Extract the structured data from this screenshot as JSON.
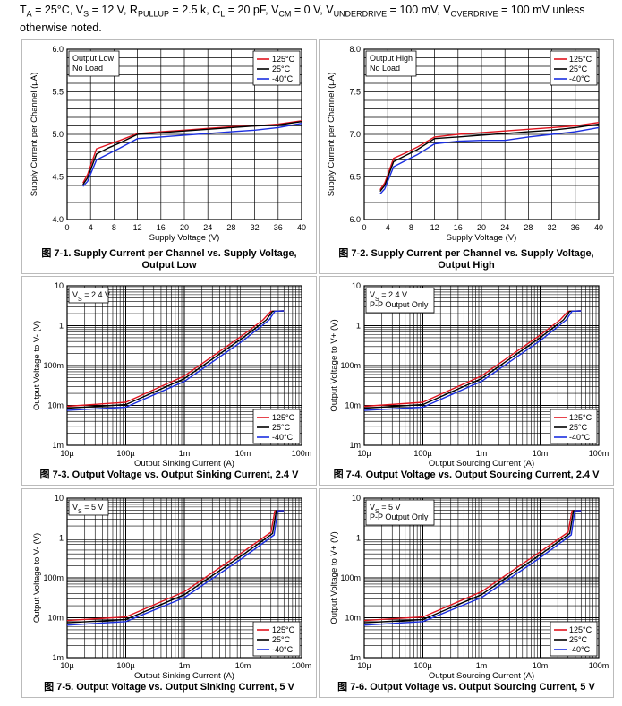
{
  "header": {
    "text": "TA = 25°C, VS = 12 V, RPULLUP = 2.5 k, CL = 20 pF, VCM = 0 V, VUNDERDRIVE = 100 mV, VOVERDRIVE = 100 mV unless otherwise noted.",
    "parts": [
      {
        "t": "T"
      },
      {
        "t": "A",
        "sub": true
      },
      {
        "t": " = 25°C, V"
      },
      {
        "t": "S",
        "sub": true
      },
      {
        "t": " = 12 V, R"
      },
      {
        "t": "PULLUP",
        "sub": true
      },
      {
        "t": " = 2.5 k, C"
      },
      {
        "t": "L",
        "sub": true
      },
      {
        "t": " = 20 pF, V"
      },
      {
        "t": "CM",
        "sub": true
      },
      {
        "t": " = 0 V, V"
      },
      {
        "t": "UNDERDRIVE",
        "sub": true
      },
      {
        "t": " = 100 mV, V"
      },
      {
        "t": "OVERDRIVE",
        "sub": true
      },
      {
        "t": " = 100 mV unless otherwise noted."
      }
    ]
  },
  "legend": {
    "labels": [
      "125°C",
      "25°C",
      "-40°C"
    ],
    "colors": [
      "#e0141e",
      "#000000",
      "#1a2ee0"
    ]
  },
  "chart_data": [
    {
      "id": "fig-7-1",
      "type": "line",
      "scale": "linear",
      "caption": "图 7-1. Supply Current per Channel vs. Supply Voltage, Output Low",
      "annotation": [
        "Output Low",
        "No Load"
      ],
      "xlabel": "Supply Voltage (V)",
      "ylabel": "Supply Current per Channel (µA)",
      "xlim": [
        0,
        40
      ],
      "ylim": [
        4.0,
        6.0
      ],
      "xticks": [
        0,
        4,
        8,
        12,
        16,
        20,
        24,
        28,
        32,
        36,
        40
      ],
      "yticks": [
        4.0,
        4.5,
        5.0,
        5.5,
        6.0
      ],
      "ytick_labels": [
        "4.0",
        "4.5",
        "5.0",
        "5.5",
        "6.0"
      ],
      "series": [
        {
          "name": "125°C",
          "x": [
            2.7,
            3.5,
            5,
            7,
            9,
            12,
            16,
            20,
            24,
            28,
            32,
            36,
            40
          ],
          "y": [
            4.43,
            4.53,
            4.83,
            4.88,
            4.93,
            5.01,
            5.03,
            5.05,
            5.07,
            5.09,
            5.1,
            5.12,
            5.16
          ]
        },
        {
          "name": "25°C",
          "x": [
            2.7,
            3.5,
            5,
            7,
            9,
            12,
            16,
            20,
            24,
            28,
            32,
            36,
            40
          ],
          "y": [
            4.41,
            4.49,
            4.77,
            4.84,
            4.9,
            5.0,
            5.02,
            5.04,
            5.06,
            5.08,
            5.1,
            5.11,
            5.15
          ]
        },
        {
          "name": "-40°C",
          "x": [
            2.7,
            3.5,
            5,
            7,
            9,
            12,
            16,
            20,
            24,
            28,
            32,
            36,
            40
          ],
          "y": [
            4.39,
            4.45,
            4.7,
            4.77,
            4.84,
            4.95,
            4.97,
            4.99,
            5.01,
            5.03,
            5.05,
            5.08,
            5.13
          ]
        }
      ]
    },
    {
      "id": "fig-7-2",
      "type": "line",
      "scale": "linear",
      "caption": "图 7-2. Supply Current per Channel vs. Supply Voltage, Output High",
      "annotation": [
        "Output High",
        "No Load"
      ],
      "xlabel": "Supply Voltage (V)",
      "ylabel": "Supply Current per Channel (µA)",
      "xlim": [
        0,
        40
      ],
      "ylim": [
        6.0,
        8.0
      ],
      "xticks": [
        0,
        4,
        8,
        12,
        16,
        20,
        24,
        28,
        32,
        36,
        40
      ],
      "yticks": [
        6.0,
        6.5,
        7.0,
        7.5,
        8.0
      ],
      "ytick_labels": [
        "6.0",
        "6.5",
        "7.0",
        "7.5",
        "8.0"
      ],
      "series": [
        {
          "name": "125°C",
          "x": [
            2.7,
            3.5,
            5,
            7,
            9,
            12,
            16,
            20,
            24,
            28,
            32,
            36,
            40
          ],
          "y": [
            6.35,
            6.43,
            6.72,
            6.78,
            6.85,
            6.97,
            7.0,
            7.02,
            7.04,
            7.06,
            7.08,
            7.1,
            7.14
          ]
        },
        {
          "name": "25°C",
          "x": [
            2.7,
            3.5,
            5,
            7,
            9,
            12,
            16,
            20,
            24,
            28,
            32,
            36,
            40
          ],
          "y": [
            6.33,
            6.4,
            6.68,
            6.75,
            6.82,
            6.95,
            6.97,
            6.99,
            7.01,
            7.03,
            7.05,
            7.08,
            7.12
          ]
        },
        {
          "name": "-40°C",
          "x": [
            2.7,
            3.5,
            5,
            7,
            9,
            12,
            16,
            20,
            24,
            28,
            32,
            36,
            40
          ],
          "y": [
            6.3,
            6.36,
            6.62,
            6.69,
            6.76,
            6.89,
            6.92,
            6.93,
            6.93,
            6.97,
            7.0,
            7.03,
            7.08
          ]
        }
      ]
    },
    {
      "id": "fig-7-3",
      "type": "line",
      "scale": "loglog",
      "caption": "图 7-3. Output Voltage vs. Output Sinking Current, 2.4 V",
      "annotation": [
        "VS = 2.4 V"
      ],
      "annotation_parts": [
        [
          {
            "t": "V"
          },
          {
            "t": "S",
            "sub": true
          },
          {
            "t": " = 2.4 V"
          }
        ]
      ],
      "xlabel": "Output Sinking Current (A)",
      "ylabel": "Output Voltage to V- (V)",
      "xlim": [
        1e-05,
        0.1
      ],
      "ylim": [
        0.001,
        10
      ],
      "xticks": [
        1e-05,
        0.0001,
        0.001,
        0.01,
        0.1
      ],
      "xtick_labels": [
        "10µ",
        "100µ",
        "1m",
        "10m",
        "100m"
      ],
      "yticks": [
        0.001,
        0.01,
        0.1,
        1,
        10
      ],
      "ytick_labels": [
        "1m",
        "10m",
        "100m",
        "1",
        "10"
      ],
      "series": [
        {
          "name": "125°C",
          "x": [
            1e-05,
            0.0001,
            0.001,
            0.01,
            0.022,
            0.03,
            0.05
          ],
          "y": [
            0.0095,
            0.012,
            0.055,
            0.58,
            1.4,
            2.3,
            2.35
          ]
        },
        {
          "name": "25°C",
          "x": [
            1e-05,
            0.0001,
            0.001,
            0.01,
            0.025,
            0.032,
            0.05
          ],
          "y": [
            0.0085,
            0.0105,
            0.047,
            0.5,
            1.4,
            2.3,
            2.35
          ]
        },
        {
          "name": "-40°C",
          "x": [
            1e-05,
            0.0001,
            0.001,
            0.01,
            0.028,
            0.035,
            0.05
          ],
          "y": [
            0.0075,
            0.009,
            0.04,
            0.42,
            1.4,
            2.3,
            2.35
          ]
        }
      ]
    },
    {
      "id": "fig-7-4",
      "type": "line",
      "scale": "loglog",
      "caption": "图 7-4. Output Voltage vs. Output Sourcing Current, 2.4 V",
      "annotation": [
        "VS = 2.4 V",
        "P-P Output Only"
      ],
      "annotation_parts": [
        [
          {
            "t": "V"
          },
          {
            "t": "S",
            "sub": true
          },
          {
            "t": " = 2.4 V"
          }
        ],
        [
          {
            "t": "P-P Output Only"
          }
        ]
      ],
      "xlabel": "Output Sourcing Current (A)",
      "ylabel": "Output Voltage to V+ (V)",
      "xlim": [
        1e-05,
        0.1
      ],
      "ylim": [
        0.001,
        10
      ],
      "xticks": [
        1e-05,
        0.0001,
        0.001,
        0.01,
        0.1
      ],
      "xtick_labels": [
        "10µ",
        "100µ",
        "1m",
        "10m",
        "100m"
      ],
      "yticks": [
        0.001,
        0.01,
        0.1,
        1,
        10
      ],
      "ytick_labels": [
        "1m",
        "10m",
        "100m",
        "1",
        "10"
      ],
      "series": [
        {
          "name": "125°C",
          "x": [
            1e-05,
            0.0001,
            0.001,
            0.01,
            0.022,
            0.03,
            0.05
          ],
          "y": [
            0.0095,
            0.012,
            0.055,
            0.58,
            1.4,
            2.3,
            2.35
          ]
        },
        {
          "name": "25°C",
          "x": [
            1e-05,
            0.0001,
            0.001,
            0.01,
            0.025,
            0.032,
            0.05
          ],
          "y": [
            0.0085,
            0.0105,
            0.047,
            0.5,
            1.4,
            2.3,
            2.35
          ]
        },
        {
          "name": "-40°C",
          "x": [
            1e-05,
            0.0001,
            0.001,
            0.01,
            0.028,
            0.035,
            0.05
          ],
          "y": [
            0.0075,
            0.009,
            0.04,
            0.42,
            1.4,
            2.3,
            2.35
          ]
        }
      ]
    },
    {
      "id": "fig-7-5",
      "type": "line",
      "scale": "loglog",
      "caption": "图 7-5. Output Voltage vs. Output Sinking Current, 5 V",
      "annotation": [
        "VS = 5 V"
      ],
      "annotation_parts": [
        [
          {
            "t": "V"
          },
          {
            "t": "S",
            "sub": true
          },
          {
            "t": " = 5 V"
          }
        ]
      ],
      "xlabel": "Output Sinking Current (A)",
      "ylabel": "Output Voltage to V- (V)",
      "xlim": [
        1e-05,
        0.1
      ],
      "ylim": [
        0.001,
        10
      ],
      "xticks": [
        1e-05,
        0.0001,
        0.001,
        0.01,
        0.1
      ],
      "xtick_labels": [
        "10µ",
        "100µ",
        "1m",
        "10m",
        "100m"
      ],
      "yticks": [
        0.001,
        0.01,
        0.1,
        1,
        10
      ],
      "ytick_labels": [
        "1m",
        "10m",
        "100m",
        "1",
        "10"
      ],
      "series": [
        {
          "name": "125°C",
          "x": [
            1e-05,
            0.0001,
            0.001,
            0.01,
            0.03,
            0.035,
            0.05
          ],
          "y": [
            0.0085,
            0.0105,
            0.045,
            0.45,
            1.4,
            4.8,
            4.85
          ]
        },
        {
          "name": "25°C",
          "x": [
            1e-05,
            0.0001,
            0.001,
            0.01,
            0.032,
            0.037,
            0.05
          ],
          "y": [
            0.0075,
            0.009,
            0.038,
            0.38,
            1.3,
            4.8,
            4.85
          ]
        },
        {
          "name": "-40°C",
          "x": [
            1e-05,
            0.0001,
            0.001,
            0.01,
            0.034,
            0.039,
            0.05
          ],
          "y": [
            0.0065,
            0.008,
            0.032,
            0.32,
            1.2,
            4.8,
            4.85
          ]
        }
      ]
    },
    {
      "id": "fig-7-6",
      "type": "line",
      "scale": "loglog",
      "caption": "图 7-6. Output Voltage vs. Output Sourcing Current, 5 V",
      "annotation": [
        "VS = 5 V",
        "P-P Output Only"
      ],
      "annotation_parts": [
        [
          {
            "t": "V"
          },
          {
            "t": "S",
            "sub": true
          },
          {
            "t": " = 5 V"
          }
        ],
        [
          {
            "t": "P-P Output Only"
          }
        ]
      ],
      "xlabel": "Output Sourcing Current (A)",
      "ylabel": "Output Voltage to V+ (V)",
      "xlim": [
        1e-05,
        0.1
      ],
      "ylim": [
        0.001,
        10
      ],
      "xticks": [
        1e-05,
        0.0001,
        0.001,
        0.01,
        0.1
      ],
      "xtick_labels": [
        "10µ",
        "100µ",
        "1m",
        "10m",
        "100m"
      ],
      "yticks": [
        0.001,
        0.01,
        0.1,
        1,
        10
      ],
      "ytick_labels": [
        "1m",
        "10m",
        "100m",
        "1",
        "10"
      ],
      "series": [
        {
          "name": "125°C",
          "x": [
            1e-05,
            0.0001,
            0.001,
            0.01,
            0.03,
            0.035,
            0.05
          ],
          "y": [
            0.0085,
            0.0105,
            0.045,
            0.45,
            1.4,
            4.8,
            4.85
          ]
        },
        {
          "name": "25°C",
          "x": [
            1e-05,
            0.0001,
            0.001,
            0.01,
            0.032,
            0.037,
            0.05
          ],
          "y": [
            0.0075,
            0.009,
            0.038,
            0.38,
            1.3,
            4.8,
            4.85
          ]
        },
        {
          "name": "-40°C",
          "x": [
            1e-05,
            0.0001,
            0.001,
            0.01,
            0.034,
            0.039,
            0.05
          ],
          "y": [
            0.0065,
            0.008,
            0.032,
            0.32,
            1.2,
            4.8,
            4.85
          ]
        }
      ]
    }
  ]
}
